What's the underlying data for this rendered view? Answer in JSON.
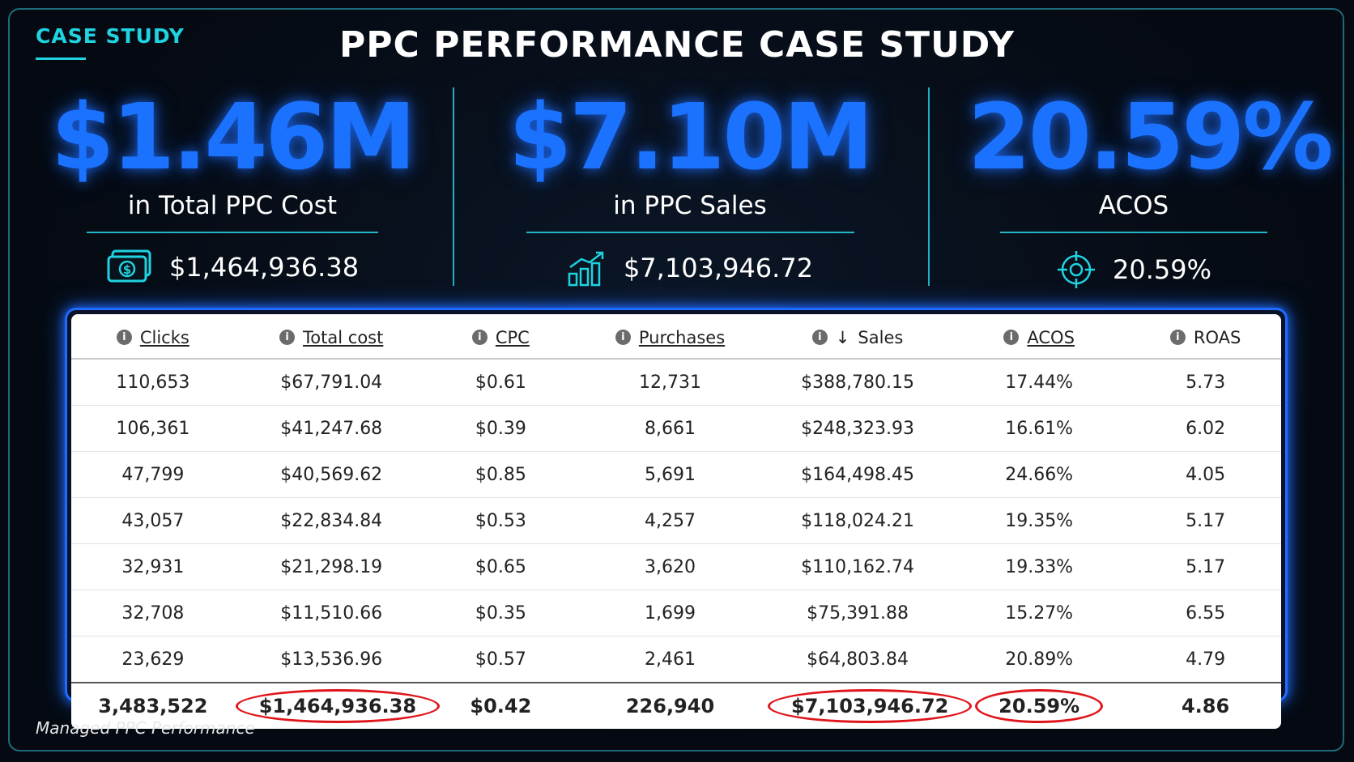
{
  "header": {
    "tag": "CASE STUDY",
    "title": "PPC PERFORMANCE CASE STUDY"
  },
  "kpis": [
    {
      "big": "$1.46M",
      "label": "in Total PPC Cost",
      "detail": "$1,464,936.38",
      "icon": "money-icon"
    },
    {
      "big": "$7.10M",
      "label": "in PPC Sales",
      "detail": "$7,103,946.72",
      "icon": "growth-chart-icon"
    },
    {
      "big": "20.59%",
      "label": "ACOS",
      "detail": "20.59%",
      "icon": "target-icon"
    }
  ],
  "table": {
    "columns": [
      "Clicks",
      "Total cost",
      "CPC",
      "Purchases",
      "Sales",
      "ACOS",
      "ROAS"
    ],
    "sort_column": "Sales",
    "sort_icon": "arrow-down-icon",
    "info_icon": "info-icon",
    "rows": [
      [
        "110,653",
        "$67,791.04",
        "$0.61",
        "12,731",
        "$388,780.15",
        "17.44%",
        "5.73"
      ],
      [
        "106,361",
        "$41,247.68",
        "$0.39",
        "8,661",
        "$248,323.93",
        "16.61%",
        "6.02"
      ],
      [
        "47,799",
        "$40,569.62",
        "$0.85",
        "5,691",
        "$164,498.45",
        "24.66%",
        "4.05"
      ],
      [
        "43,057",
        "$22,834.84",
        "$0.53",
        "4,257",
        "$118,024.21",
        "19.35%",
        "5.17"
      ],
      [
        "32,931",
        "$21,298.19",
        "$0.65",
        "3,620",
        "$110,162.74",
        "19.33%",
        "5.17"
      ],
      [
        "32,708",
        "$11,510.66",
        "$0.35",
        "1,699",
        "$75,391.88",
        "15.27%",
        "6.55"
      ],
      [
        "23,629",
        "$13,536.96",
        "$0.57",
        "2,461",
        "$64,803.84",
        "20.89%",
        "4.79"
      ]
    ],
    "total": [
      "3,483,522",
      "$1,464,936.38",
      "$0.42",
      "226,940",
      "$7,103,946.72",
      "20.59%",
      "4.86"
    ]
  },
  "footer": "Managed PPC Performance",
  "colors": {
    "accent_cyan": "#1fd3e0",
    "kpi_blue": "#1a72ff",
    "highlight_red": "#e0151b",
    "background": "#050a12"
  }
}
